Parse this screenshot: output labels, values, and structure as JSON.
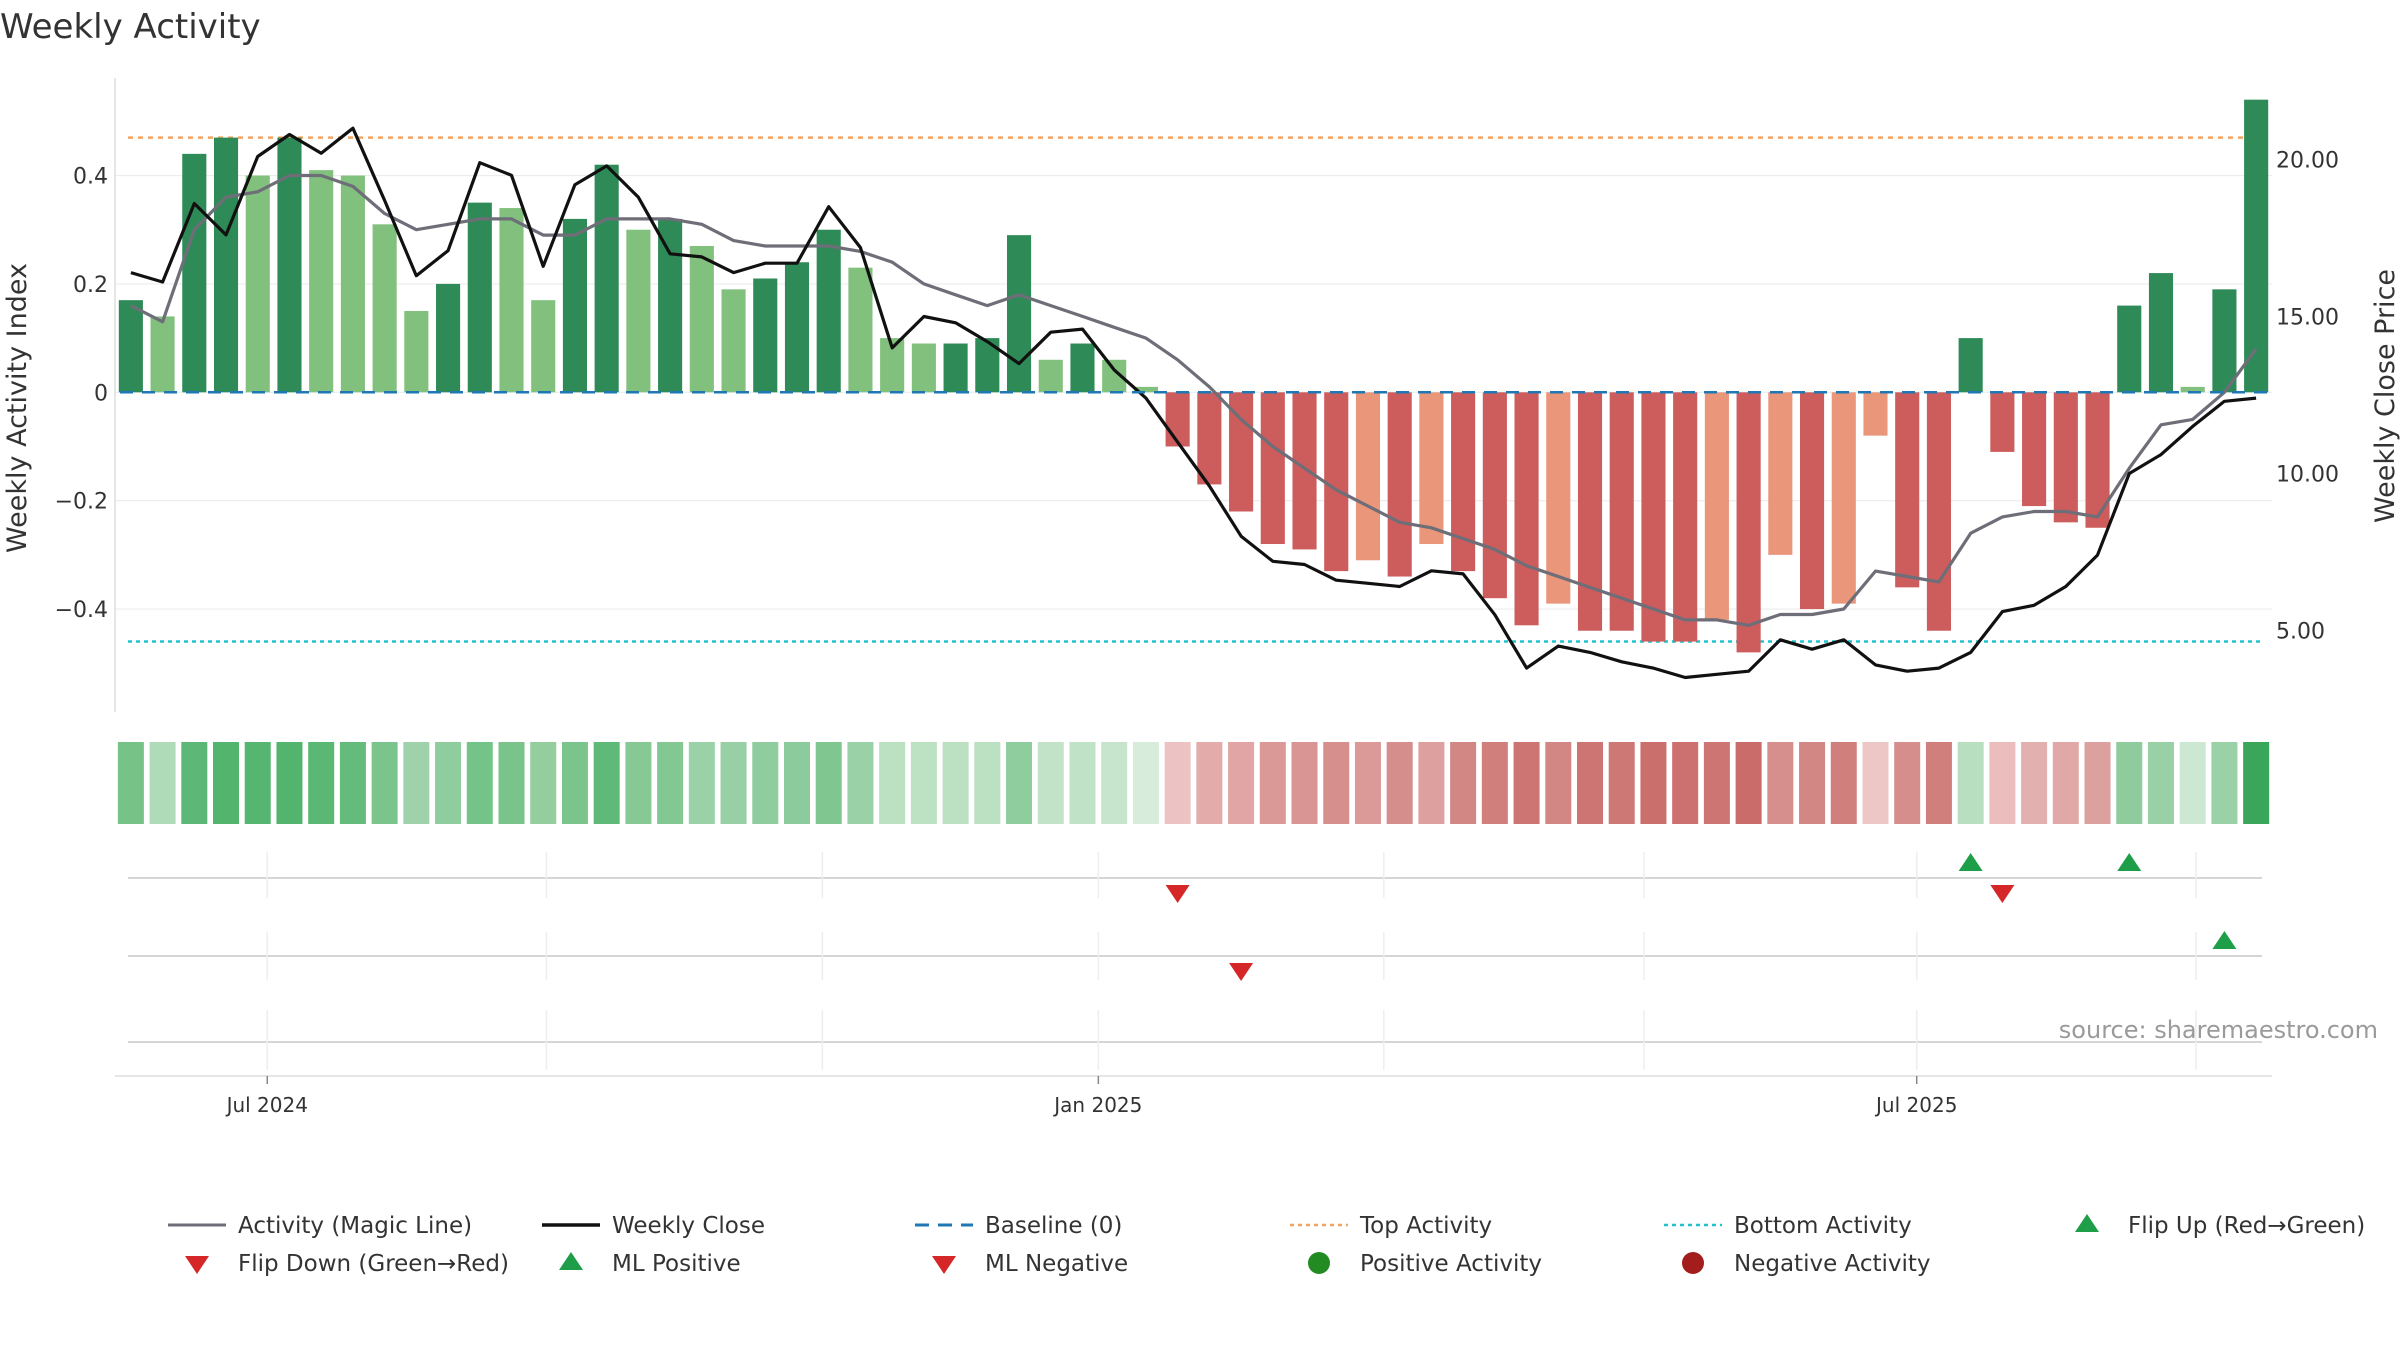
{
  "chart_data": {
    "type": "bar",
    "title": "Weekly Activity",
    "ylabel_left": "Weekly Activity Index",
    "ylabel_right": "Weekly Close Price",
    "y_left_ticks": [
      {
        "v": 0.4,
        "label": "0.4"
      },
      {
        "v": 0.2,
        "label": "0.2"
      },
      {
        "v": 0,
        "label": "0"
      },
      {
        "v": -0.2,
        "label": "−0.2"
      },
      {
        "v": -0.4,
        "label": "−0.4"
      }
    ],
    "y_left_range": [
      -0.59,
      0.58
    ],
    "y_right_ticks": [
      {
        "v": 20,
        "label": "20.00"
      },
      {
        "v": 15,
        "label": "15.00"
      },
      {
        "v": 10,
        "label": "10.00"
      },
      {
        "v": 5,
        "label": "5.00"
      }
    ],
    "y_right_range": [
      2.4,
      22.6
    ],
    "x_ticks": [
      {
        "week": 4.3,
        "label": "Jul 2024"
      },
      {
        "week": 30.5,
        "label": "Jan 2025"
      },
      {
        "week": 56.3,
        "label": "Jul 2025"
      }
    ],
    "x_minor_gridlines": [
      13.1,
      21.8,
      39.5,
      47.7,
      65.1
    ],
    "top_activity": 0.47,
    "bottom_activity": -0.46,
    "baseline": 0,
    "activity_index": [
      0.17,
      0.14,
      0.44,
      0.47,
      0.4,
      0.47,
      0.41,
      0.4,
      0.31,
      0.15,
      0.2,
      0.35,
      0.34,
      0.17,
      0.32,
      0.42,
      0.3,
      0.32,
      0.27,
      0.19,
      0.21,
      0.24,
      0.3,
      0.23,
      0.1,
      0.09,
      0.09,
      0.1,
      0.29,
      0.06,
      0.09,
      0.06,
      0.01,
      -0.1,
      -0.17,
      -0.22,
      -0.28,
      -0.29,
      -0.33,
      -0.31,
      -0.34,
      -0.28,
      -0.33,
      -0.38,
      -0.43,
      -0.39,
      -0.44,
      -0.44,
      -0.46,
      -0.46,
      -0.42,
      -0.48,
      -0.3,
      -0.4,
      -0.39,
      -0.08,
      -0.36,
      -0.44,
      0.1,
      -0.11,
      -0.21,
      -0.24,
      -0.25,
      0.16,
      0.22,
      0.01,
      0.19,
      0.54
    ],
    "bar_shade": [
      "dark",
      "light",
      "dark",
      "dark",
      "light",
      "dark",
      "light",
      "light",
      "light",
      "light",
      "dark",
      "dark",
      "light",
      "light",
      "dark",
      "dark",
      "light",
      "dark",
      "light",
      "light",
      "dark",
      "dark",
      "dark",
      "light",
      "light",
      "light",
      "dark",
      "dark",
      "dark",
      "light",
      "dark",
      "light",
      "light",
      "dark",
      "dark",
      "dark",
      "dark",
      "dark",
      "dark",
      "light",
      "dark",
      "light",
      "dark",
      "dark",
      "dark",
      "light",
      "dark",
      "dark",
      "dark",
      "dark",
      "light",
      "dark",
      "light",
      "dark",
      "light",
      "light",
      "dark",
      "dark",
      "dark",
      "dark",
      "dark",
      "dark",
      "dark",
      "dark",
      "dark",
      "light",
      "dark",
      "dark"
    ],
    "magic_line": [
      0.16,
      0.13,
      0.3,
      0.36,
      0.37,
      0.4,
      0.4,
      0.38,
      0.33,
      0.3,
      0.31,
      0.32,
      0.32,
      0.29,
      0.29,
      0.32,
      0.32,
      0.32,
      0.31,
      0.28,
      0.27,
      0.27,
      0.27,
      0.26,
      0.24,
      0.2,
      0.18,
      0.16,
      0.18,
      0.16,
      0.14,
      0.12,
      0.1,
      0.06,
      0.01,
      -0.05,
      -0.1,
      -0.14,
      -0.18,
      -0.21,
      -0.24,
      -0.25,
      -0.27,
      -0.29,
      -0.32,
      -0.34,
      -0.36,
      -0.38,
      -0.4,
      -0.42,
      -0.42,
      -0.43,
      -0.41,
      -0.41,
      -0.4,
      -0.33,
      -0.34,
      -0.35,
      -0.26,
      -0.23,
      -0.22,
      -0.22,
      -0.23,
      -0.14,
      -0.06,
      -0.05,
      0.0,
      0.08
    ],
    "weekly_close": [
      16.4,
      16.1,
      18.6,
      17.6,
      20.1,
      20.8,
      20.2,
      21.0,
      18.7,
      16.3,
      17.1,
      19.9,
      19.5,
      16.6,
      19.2,
      19.8,
      18.8,
      17.0,
      16.9,
      16.4,
      16.7,
      16.7,
      18.5,
      17.2,
      14.0,
      15.0,
      14.8,
      14.2,
      13.5,
      14.5,
      14.6,
      13.3,
      12.4,
      11.0,
      9.6,
      8.0,
      7.2,
      7.1,
      6.6,
      6.5,
      6.4,
      6.9,
      6.8,
      5.5,
      3.8,
      4.5,
      4.3,
      4.0,
      3.8,
      3.5,
      3.6,
      3.7,
      4.7,
      4.4,
      4.7,
      3.9,
      3.7,
      3.8,
      4.3,
      5.6,
      5.8,
      6.4,
      7.4,
      10.0,
      10.6,
      11.5,
      12.3,
      12.4
    ],
    "heatmap_colors": [
      "#76c287",
      "#b0dbb9",
      "#5db877",
      "#52b46d",
      "#56b570",
      "#52b46d",
      "#5ab874",
      "#64bb7c",
      "#7bc58c",
      "#9fd2ab",
      "#8fcc9e",
      "#74c389",
      "#7ac48b",
      "#94ce9f",
      "#7bc58c",
      "#5fb978",
      "#86c995",
      "#83c893",
      "#9bd1a6",
      "#98cfa5",
      "#8fcc9e",
      "#8ccb9b",
      "#80c690",
      "#9bd1a6",
      "#bbe0c2",
      "#bce1c3",
      "#bbe0c2",
      "#bbe0c2",
      "#8fcc9e",
      "#c3e3c9",
      "#c0e2c7",
      "#c7e5cc",
      "#d8ecdc",
      "#ecc2c2",
      "#e3acab",
      "#e0a5a4",
      "#da9896",
      "#d89593",
      "#d68f8d",
      "#db9a98",
      "#d68e8c",
      "#dea09f",
      "#d38785",
      "#d17f7d",
      "#cd7573",
      "#d38785",
      "#cd7573",
      "#ce7876",
      "#cb6f6d",
      "#cc716f",
      "#cd7573",
      "#ca6c6a",
      "#d78f8d",
      "#d38785",
      "#d17f7d",
      "#edc7c6",
      "#d68e8c",
      "#d17f7d",
      "#b9dfc1",
      "#ebbdbc",
      "#e2b0ae",
      "#e0a9a8",
      "#dca19f",
      "#8ecb9d",
      "#99d0a6",
      "#cde8d2",
      "#9bd1a7",
      "#3aa65a"
    ],
    "flip_up_weeks": [
      58,
      63
    ],
    "flip_down_weeks": [
      33,
      59
    ],
    "ml_positive_weeks": [
      66
    ],
    "ml_negative_weeks": [
      35
    ],
    "positive_activity_weeks": [],
    "negative_activity_weeks": [],
    "colors": {
      "bar_pos_dark": "#2e8b57",
      "bar_pos_light": "#82c07e",
      "bar_neg_dark": "#cd5c5c",
      "bar_neg_light": "#e9967a",
      "magic_line": "#6e6e78",
      "weekly_close": "#111111",
      "baseline": "#1f77b4",
      "top_activity": "#f4a460",
      "bottom_activity": "#20c4cc",
      "flip_up": "#1f9e4a",
      "flip_down": "#d62728",
      "ml_positive": "#1f9e4a",
      "ml_negative": "#d62728",
      "positive_activity": "#228b22",
      "negative_activity": "#a31d1d"
    },
    "legend": [
      {
        "key": "magic_line",
        "label": "Activity (Magic Line)",
        "kind": "line-solid"
      },
      {
        "key": "weekly_close",
        "label": "Weekly Close",
        "kind": "line-solid-bold"
      },
      {
        "key": "baseline",
        "label": "Baseline (0)",
        "kind": "line-dash"
      },
      {
        "key": "top_activity",
        "label": "Top Activity",
        "kind": "line-dot"
      },
      {
        "key": "bottom_activity",
        "label": "Bottom Activity",
        "kind": "line-dot"
      },
      {
        "key": "flip_up",
        "label": "Flip Up (Red→Green)",
        "kind": "tri-up"
      },
      {
        "key": "flip_down",
        "label": "Flip Down (Green→Red)",
        "kind": "tri-down"
      },
      {
        "key": "ml_positive",
        "label": "ML Positive",
        "kind": "tri-up"
      },
      {
        "key": "ml_negative",
        "label": "ML Negative",
        "kind": "tri-down"
      },
      {
        "key": "positive_activity",
        "label": "Positive Activity",
        "kind": "dot"
      },
      {
        "key": "negative_activity",
        "label": "Negative Activity",
        "kind": "dot"
      }
    ],
    "source": "source: sharemaestro.com"
  }
}
